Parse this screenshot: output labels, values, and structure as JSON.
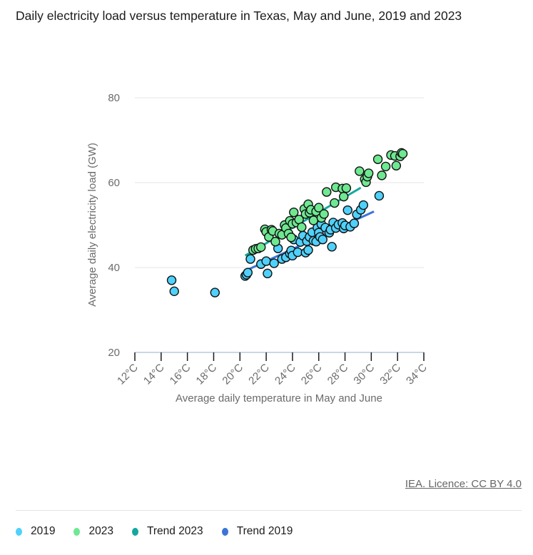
{
  "title": "Daily electricity load versus temperature in Texas, May and June, 2019 and 2023",
  "credit": "IEA. Licence: CC BY 4.0",
  "legend": [
    {
      "label": "2019",
      "color": "#4fd1fb"
    },
    {
      "label": "2023",
      "color": "#6ee891"
    },
    {
      "label": "Trend 2023",
      "color": "#13a89e"
    },
    {
      "label": "Trend 2019",
      "color": "#3b74d8"
    }
  ],
  "chart_data": {
    "type": "scatter",
    "title": "Daily electricity load versus temperature in Texas, May and June, 2019 and 2023",
    "xlabel": "Average daily temperature in May and June",
    "ylabel": "Average daily electricity load (GW)",
    "xlim": [
      12,
      34
    ],
    "ylim": [
      20,
      80
    ],
    "x_ticks": [
      "12°C",
      "14°C",
      "16°C",
      "18°C",
      "20°C",
      "22°C",
      "24°C",
      "26°C",
      "28°C",
      "30°C",
      "32°C",
      "34°C"
    ],
    "y_ticks": [
      "20",
      "40",
      "60",
      "80"
    ],
    "grid": true,
    "legend_position": "bottom-left",
    "series": [
      {
        "name": "2019",
        "type": "scatter",
        "color": "#4fd1fb",
        "points": [
          [
            14.8,
            37.0
          ],
          [
            15.0,
            34.4
          ],
          [
            18.1,
            34.1
          ],
          [
            20.4,
            38.0
          ],
          [
            20.5,
            38.3
          ],
          [
            20.6,
            38.8
          ],
          [
            20.8,
            42.0
          ],
          [
            21.6,
            40.8
          ],
          [
            22.0,
            41.5
          ],
          [
            22.1,
            38.6
          ],
          [
            22.6,
            41.0
          ],
          [
            22.9,
            44.5
          ],
          [
            23.2,
            42.0
          ],
          [
            23.5,
            42.4
          ],
          [
            23.8,
            43.3
          ],
          [
            23.9,
            44.0
          ],
          [
            24.0,
            42.8
          ],
          [
            24.1,
            46.6
          ],
          [
            24.4,
            43.6
          ],
          [
            24.6,
            46.0
          ],
          [
            24.8,
            47.5
          ],
          [
            25.0,
            43.5
          ],
          [
            25.1,
            46.2
          ],
          [
            25.2,
            44.1
          ],
          [
            25.3,
            47.2
          ],
          [
            25.5,
            48.3
          ],
          [
            25.6,
            46.3
          ],
          [
            25.8,
            46.1
          ],
          [
            25.9,
            49.4
          ],
          [
            26.0,
            48.2
          ],
          [
            26.1,
            47.2
          ],
          [
            26.2,
            50.2
          ],
          [
            26.3,
            46.6
          ],
          [
            26.5,
            49.4
          ],
          [
            26.8,
            48.2
          ],
          [
            26.9,
            48.9
          ],
          [
            27.0,
            44.9
          ],
          [
            27.1,
            50.6
          ],
          [
            27.3,
            49.3
          ],
          [
            27.5,
            50.1
          ],
          [
            27.8,
            50.5
          ],
          [
            27.9,
            49.2
          ],
          [
            28.0,
            49.9
          ],
          [
            28.2,
            53.5
          ],
          [
            28.4,
            49.6
          ],
          [
            28.7,
            50.4
          ],
          [
            28.9,
            52.5
          ],
          [
            29.2,
            53.6
          ],
          [
            29.4,
            54.7
          ],
          [
            30.6,
            56.9
          ]
        ]
      },
      {
        "name": "2023",
        "type": "scatter",
        "color": "#6ee891",
        "points": [
          [
            21.0,
            44.1
          ],
          [
            21.2,
            44.4
          ],
          [
            21.4,
            44.5
          ],
          [
            21.6,
            44.8
          ],
          [
            21.9,
            49.0
          ],
          [
            22.0,
            48.4
          ],
          [
            22.2,
            47.2
          ],
          [
            22.4,
            48.9
          ],
          [
            22.5,
            48.6
          ],
          [
            22.7,
            46.1
          ],
          [
            23.0,
            48.0
          ],
          [
            23.2,
            47.7
          ],
          [
            23.4,
            50.0
          ],
          [
            23.5,
            49.3
          ],
          [
            23.7,
            48.0
          ],
          [
            23.8,
            51.0
          ],
          [
            23.9,
            47.1
          ],
          [
            24.0,
            50.3
          ],
          [
            24.1,
            53.0
          ],
          [
            24.3,
            50.6
          ],
          [
            24.5,
            51.3
          ],
          [
            24.7,
            49.5
          ],
          [
            24.9,
            53.8
          ],
          [
            25.0,
            52.6
          ],
          [
            25.2,
            54.9
          ],
          [
            25.3,
            52.9
          ],
          [
            25.4,
            53.6
          ],
          [
            25.6,
            51.1
          ],
          [
            25.8,
            53.2
          ],
          [
            26.0,
            54.1
          ],
          [
            26.2,
            51.7
          ],
          [
            26.4,
            52.6
          ],
          [
            26.6,
            57.8
          ],
          [
            27.2,
            55.2
          ],
          [
            27.3,
            58.9
          ],
          [
            27.8,
            58.6
          ],
          [
            27.9,
            56.7
          ],
          [
            28.1,
            58.7
          ],
          [
            29.1,
            62.7
          ],
          [
            29.5,
            60.8
          ],
          [
            29.6,
            60.1
          ],
          [
            29.7,
            61.4
          ],
          [
            29.8,
            62.2
          ],
          [
            30.5,
            65.5
          ],
          [
            30.8,
            61.7
          ],
          [
            31.1,
            63.8
          ],
          [
            31.5,
            66.5
          ],
          [
            31.8,
            66.3
          ],
          [
            31.9,
            64.0
          ],
          [
            32.2,
            66.2
          ],
          [
            32.3,
            67.0
          ],
          [
            32.4,
            66.8
          ]
        ]
      },
      {
        "name": "Trend 2023",
        "type": "line",
        "color": "#13a89e",
        "points": [
          [
            20.4,
            42.8
          ],
          [
            29.2,
            58.8
          ]
        ]
      },
      {
        "name": "Trend 2019",
        "type": "line",
        "color": "#3b74d8",
        "points": [
          [
            20.4,
            39.2
          ],
          [
            30.2,
            53.2
          ]
        ]
      }
    ]
  }
}
